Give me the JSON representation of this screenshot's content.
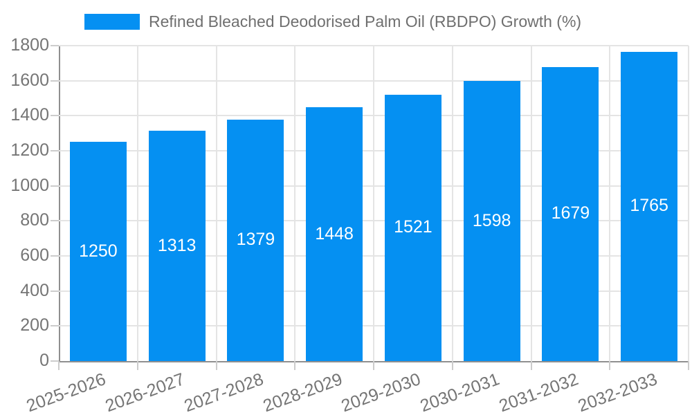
{
  "chart_data": {
    "type": "bar",
    "title": "Refined Bleached Deodorised Palm Oil (RBDPO) Growth (%)",
    "categories": [
      "2025-2026",
      "2026-2027",
      "2027-2028",
      "2028-2029",
      "2029-2030",
      "2030-2031",
      "2031-2032",
      "2032-2033"
    ],
    "values": [
      1250,
      1313,
      1379,
      1448,
      1521,
      1598,
      1679,
      1765
    ],
    "data_labels": [
      "1250",
      "1313",
      "1379",
      "1448",
      "1521",
      "1598",
      "1679",
      "1765"
    ],
    "xlabel": "",
    "ylabel": "",
    "ylim": [
      0,
      1800
    ],
    "y_tick_labels": [
      "0",
      "200",
      "400",
      "600",
      "800",
      "1000",
      "1200",
      "1400",
      "1600",
      "1800"
    ],
    "y_tick_values": [
      0,
      200,
      400,
      600,
      800,
      1000,
      1200,
      1400,
      1600,
      1800
    ],
    "grid": true,
    "legend_position": "top",
    "bar_color": "#0590f2",
    "data_label_color": "#ffffff",
    "axis_text_color": "#757575"
  },
  "legend": {
    "label": "Refined Bleached Deodorised Palm Oil (RBDPO) Growth (%)",
    "swatch_color": "#0590f2"
  }
}
